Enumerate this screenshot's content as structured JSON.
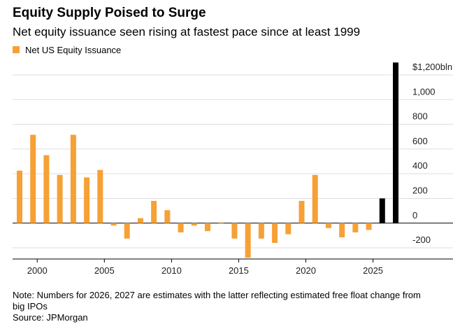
{
  "chart_data": {
    "type": "bar",
    "title": "Equity Supply Poised to Surge",
    "subtitle": "Net equity issuance seen rising at fastest pace since at least 1999",
    "legend": "Net US Equity Issuance",
    "categories": [
      1999,
      2000,
      2001,
      2002,
      2003,
      2004,
      2005,
      2006,
      2007,
      2008,
      2009,
      2010,
      2011,
      2012,
      2013,
      2014,
      2015,
      2016,
      2017,
      2018,
      2019,
      2020,
      2021,
      2022,
      2023,
      2024,
      2025,
      2026,
      2027
    ],
    "values": [
      425,
      715,
      550,
      390,
      715,
      370,
      430,
      -20,
      -125,
      40,
      180,
      105,
      -75,
      -20,
      -65,
      5,
      -125,
      -280,
      -125,
      -160,
      -90,
      180,
      390,
      -40,
      -115,
      -75,
      -55,
      200,
      1300
    ],
    "colors": [
      "#f7a035",
      "#f7a035",
      "#f7a035",
      "#f7a035",
      "#f7a035",
      "#f7a035",
      "#f7a035",
      "#f7a035",
      "#f7a035",
      "#f7a035",
      "#f7a035",
      "#f7a035",
      "#f7a035",
      "#f7a035",
      "#f7a035",
      "#f7a035",
      "#f7a035",
      "#f7a035",
      "#f7a035",
      "#f7a035",
      "#f7a035",
      "#f7a035",
      "#f7a035",
      "#f7a035",
      "#f7a035",
      "#f7a035",
      "#f7a035",
      "#000000",
      "#000000"
    ],
    "xticks": [
      2000,
      2005,
      2010,
      2015,
      2020,
      2025
    ],
    "ylim": [
      -300,
      1300
    ],
    "yticks": [
      -200,
      0,
      200,
      400,
      600,
      800,
      {
        "value": 1000,
        "label": "1,000"
      },
      {
        "value": 1200,
        "label": "$1,200bln"
      }
    ],
    "grid": true,
    "note": "Note: Numbers for 2026, 2027 are estimates with the latter reflecting estimated free float change from big IPOs",
    "source": "Source: JPMorgan"
  }
}
